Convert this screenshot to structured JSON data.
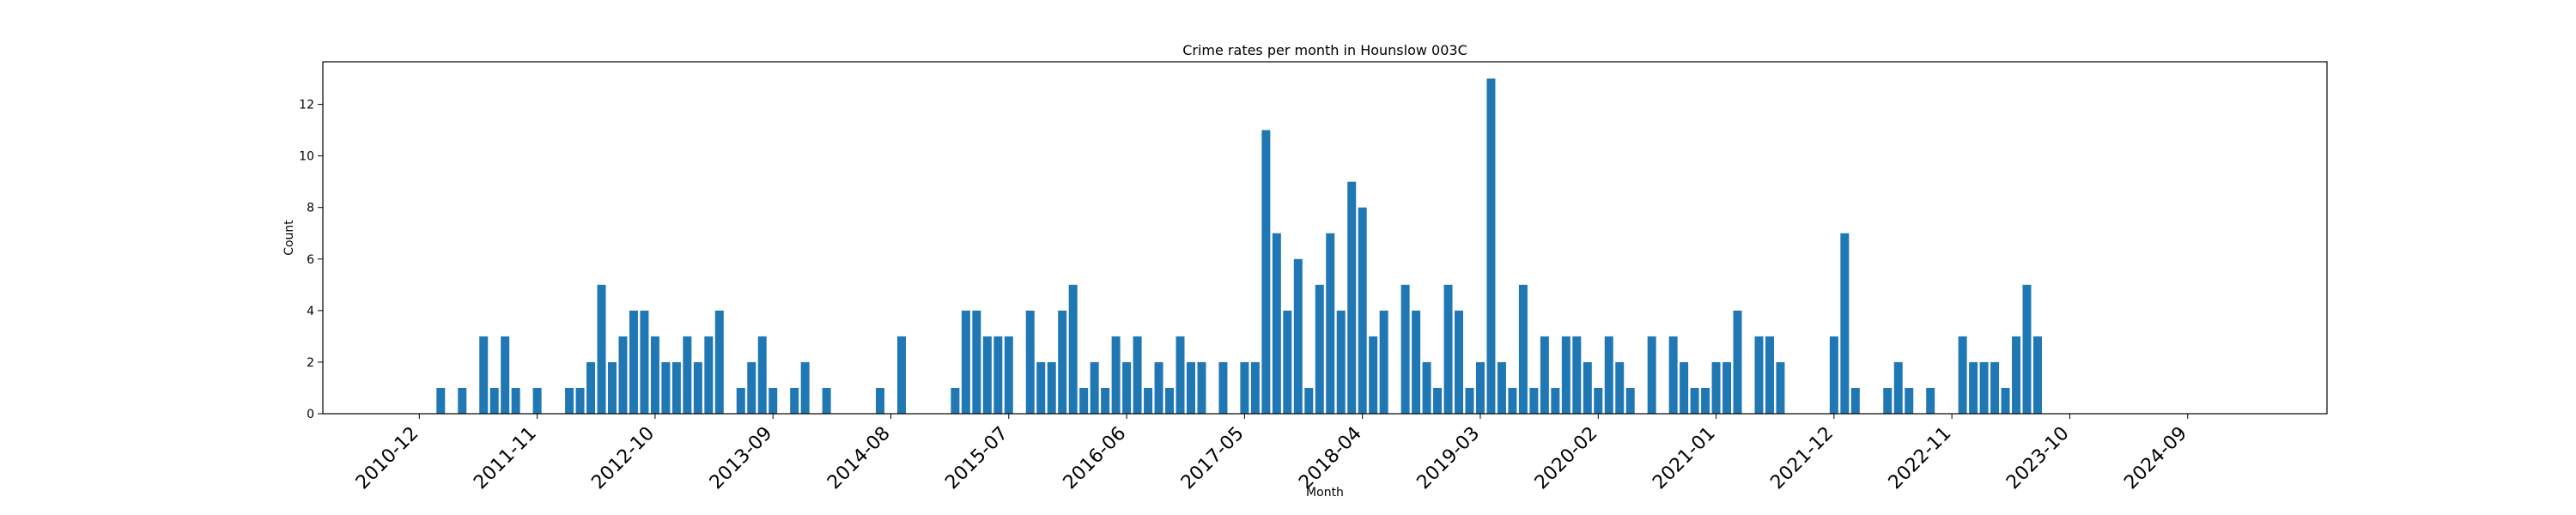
{
  "chart_data": {
    "type": "bar",
    "title": "Crime rates per month in Hounslow 003C",
    "xlabel": "Month",
    "ylabel": "Count",
    "ylim": [
      0,
      13.65
    ],
    "yticks": [
      0,
      2,
      4,
      6,
      8,
      10,
      12
    ],
    "xtick_labels": [
      "2010-12",
      "2011-11",
      "2012-10",
      "2013-09",
      "2014-08",
      "2015-07",
      "2016-06",
      "2017-05",
      "2018-04",
      "2019-03",
      "2020-02",
      "2021-01",
      "2021-12",
      "2022-11",
      "2023-10",
      "2024-09"
    ],
    "xtick_positions": [
      0,
      11,
      22,
      33,
      44,
      55,
      66,
      77,
      88,
      99,
      110,
      121,
      132,
      143,
      154,
      165
    ],
    "xlim": [
      -9,
      178
    ],
    "color": "#1f77b4",
    "start_month": "2010-12",
    "values": [
      0,
      0,
      1,
      0,
      1,
      0,
      3,
      1,
      3,
      1,
      0,
      1,
      0,
      0,
      1,
      1,
      2,
      5,
      2,
      3,
      4,
      4,
      3,
      2,
      2,
      3,
      2,
      3,
      4,
      0,
      1,
      2,
      3,
      1,
      0,
      1,
      2,
      0,
      1,
      0,
      0,
      0,
      0,
      1,
      0,
      3,
      0,
      0,
      0,
      0,
      1,
      4,
      4,
      3,
      3,
      3,
      0,
      4,
      2,
      2,
      4,
      5,
      1,
      2,
      1,
      3,
      2,
      3,
      1,
      2,
      1,
      3,
      2,
      2,
      0,
      2,
      0,
      2,
      2,
      11,
      7,
      4,
      6,
      1,
      5,
      7,
      4,
      9,
      8,
      3,
      4,
      0,
      5,
      4,
      2,
      1,
      5,
      4,
      1,
      2,
      13,
      2,
      1,
      5,
      1,
      3,
      1,
      3,
      3,
      2,
      1,
      3,
      2,
      1,
      0,
      3,
      0,
      3,
      2,
      1,
      1,
      2,
      2,
      4,
      0,
      3,
      3,
      2,
      0,
      0,
      0,
      0,
      3,
      7,
      1,
      0,
      0,
      1,
      2,
      1,
      0,
      1,
      0,
      0,
      3,
      2,
      2,
      2,
      1,
      3,
      5,
      3
    ]
  }
}
